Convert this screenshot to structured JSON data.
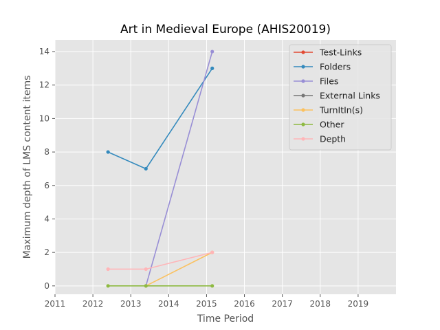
{
  "chart_data": {
    "type": "line",
    "title": "Art in Medieval Europe (AHIS20019)",
    "xlabel": "Time Period",
    "ylabel": "Maximum depth of LMS content items",
    "xlim": [
      2011,
      2020
    ],
    "ylim": [
      -0.5,
      14.7
    ],
    "x_ticks": [
      2011,
      2012,
      2013,
      2014,
      2015,
      2016,
      2017,
      2018,
      2019
    ],
    "y_ticks": [
      0,
      2,
      4,
      6,
      8,
      10,
      12,
      14
    ],
    "x": [
      2012.4,
      2013.4,
      2015.15
    ],
    "grid": true,
    "legend_position": "top-right",
    "series": [
      {
        "name": "Test-Links",
        "color": "#E24A33",
        "values": [
          null,
          null,
          null
        ]
      },
      {
        "name": "Folders",
        "color": "#348ABD",
        "values": [
          8,
          7,
          13
        ]
      },
      {
        "name": "Files",
        "color": "#988ED5",
        "values": [
          null,
          0,
          14
        ]
      },
      {
        "name": "External Links",
        "color": "#777777",
        "values": [
          null,
          null,
          null
        ]
      },
      {
        "name": "TurnItIn(s)",
        "color": "#FBC15E",
        "values": [
          null,
          0,
          2
        ]
      },
      {
        "name": "Other",
        "color": "#8EBA42",
        "values": [
          0,
          0,
          0
        ]
      },
      {
        "name": "Depth",
        "color": "#FFB5B8",
        "values": [
          1,
          1,
          2
        ]
      }
    ]
  }
}
